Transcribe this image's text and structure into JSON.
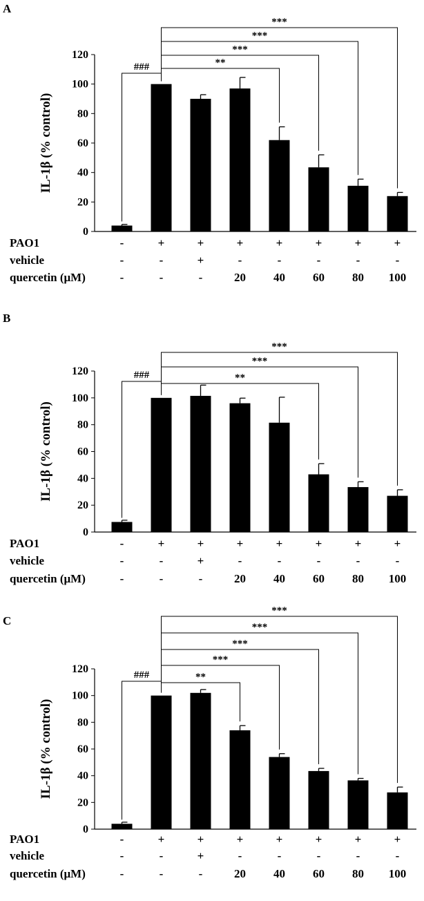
{
  "panels": [
    "A",
    "B",
    "C"
  ],
  "chart_data": [
    {
      "type": "bar",
      "panel": "A",
      "ylabel": "IL-1β (% control)",
      "ylim": [
        0,
        120
      ],
      "yticks": [
        0,
        20,
        40,
        60,
        80,
        100,
        120
      ],
      "values": [
        4,
        100,
        90,
        97,
        62,
        43.5,
        31,
        24
      ],
      "errors": [
        0.8,
        0,
        2.8,
        7.5,
        9,
        8.5,
        4.5,
        2.5
      ],
      "conditions": [
        {
          "label": "PAO1",
          "values": [
            "-",
            "+",
            "+",
            "+",
            "+",
            "+",
            "+",
            "+"
          ]
        },
        {
          "label": "vehicle",
          "values": [
            "-",
            "-",
            "+",
            "-",
            "-",
            "-",
            "-",
            "-"
          ]
        },
        {
          "label": "quercetin (μM)",
          "values": [
            "-",
            "-",
            "-",
            "20",
            "40",
            "60",
            "80",
            "100"
          ]
        }
      ],
      "comparisons": [
        {
          "from": 0,
          "to": 1,
          "label": "###"
        },
        {
          "from": 1,
          "to": 4,
          "label": "**"
        },
        {
          "from": 1,
          "to": 5,
          "label": "***"
        },
        {
          "from": 1,
          "to": 6,
          "label": "***"
        },
        {
          "from": 1,
          "to": 7,
          "label": "***"
        }
      ]
    },
    {
      "type": "bar",
      "panel": "B",
      "ylabel": "IL-1β (% control)",
      "ylim": [
        0,
        120
      ],
      "yticks": [
        0,
        20,
        40,
        60,
        80,
        100,
        120
      ],
      "values": [
        7.5,
        100,
        101.5,
        96,
        81.5,
        43,
        33.5,
        27
      ],
      "errors": [
        1.3,
        0,
        8,
        3.8,
        19,
        8,
        4,
        4.5
      ],
      "conditions": [
        {
          "label": "PAO1",
          "values": [
            "-",
            "+",
            "+",
            "+",
            "+",
            "+",
            "+",
            "+"
          ]
        },
        {
          "label": "vehicle",
          "values": [
            "-",
            "-",
            "+",
            "-",
            "-",
            "-",
            "-",
            "-"
          ]
        },
        {
          "label": "quercetin (μM)",
          "values": [
            "-",
            "-",
            "-",
            "20",
            "40",
            "60",
            "80",
            "100"
          ]
        }
      ],
      "comparisons": [
        {
          "from": 0,
          "to": 1,
          "label": "###"
        },
        {
          "from": 1,
          "to": 5,
          "label": "**"
        },
        {
          "from": 1,
          "to": 6,
          "label": "***"
        },
        {
          "from": 1,
          "to": 7,
          "label": "***"
        }
      ]
    },
    {
      "type": "bar",
      "panel": "C",
      "ylabel": "IL-1β (% control)",
      "ylim": [
        0,
        120
      ],
      "yticks": [
        0,
        20,
        40,
        60,
        80,
        100,
        120
      ],
      "values": [
        4,
        100,
        102,
        74,
        54,
        43.5,
        36.5,
        27.5
      ],
      "errors": [
        1.2,
        0,
        2.5,
        3.5,
        2.5,
        2,
        1.5,
        4
      ],
      "conditions": [
        {
          "label": "PAO1",
          "values": [
            "-",
            "+",
            "+",
            "+",
            "+",
            "+",
            "+",
            "+"
          ]
        },
        {
          "label": "vehicle",
          "values": [
            "-",
            "-",
            "+",
            "-",
            "-",
            "-",
            "-",
            "-"
          ]
        },
        {
          "label": "quercetin (μM)",
          "values": [
            "-",
            "-",
            "-",
            "20",
            "40",
            "60",
            "80",
            "100"
          ]
        }
      ],
      "comparisons": [
        {
          "from": 0,
          "to": 1,
          "label": "###"
        },
        {
          "from": 1,
          "to": 3,
          "label": "**"
        },
        {
          "from": 1,
          "to": 4,
          "label": "***"
        },
        {
          "from": 1,
          "to": 5,
          "label": "***"
        },
        {
          "from": 1,
          "to": 6,
          "label": "***"
        },
        {
          "from": 1,
          "to": 7,
          "label": "***"
        }
      ]
    }
  ]
}
